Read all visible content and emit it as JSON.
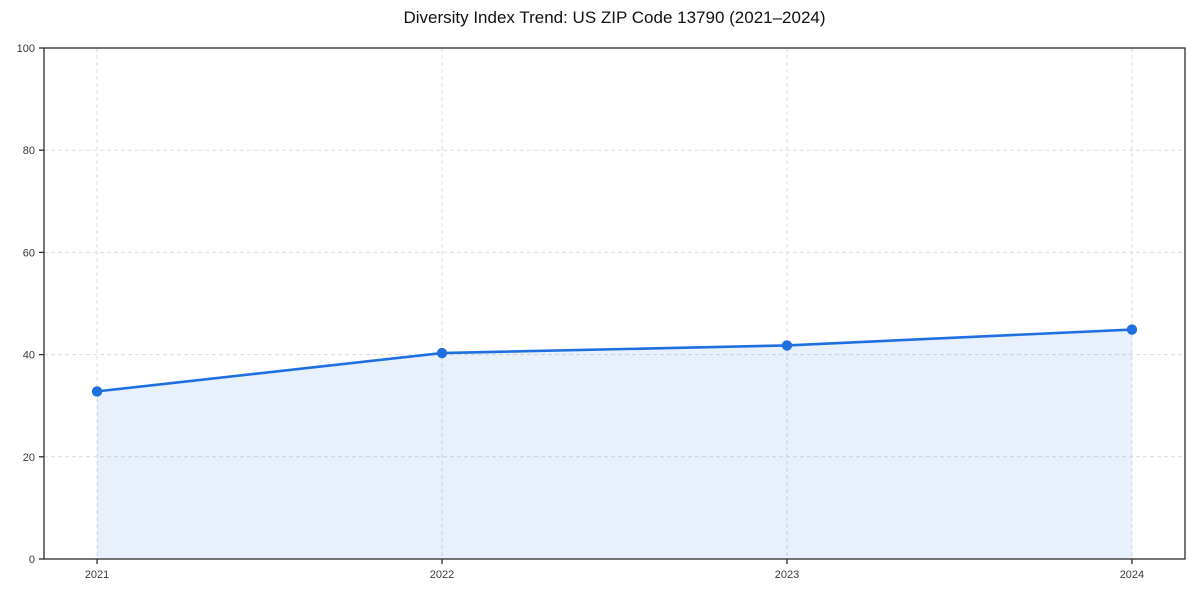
{
  "chart_data": {
    "type": "area",
    "title": "Diversity Index Trend: US ZIP Code 13790 (2021–2024)",
    "x": [
      2021,
      2022,
      2023,
      2024
    ],
    "series": [
      {
        "name": "Diversity Index",
        "values": [
          32.8,
          40.3,
          41.8,
          44.9
        ]
      }
    ],
    "xticks": [
      "2021",
      "2022",
      "2023",
      "2024"
    ],
    "yticks": [
      0,
      20,
      40,
      60,
      80,
      100
    ],
    "ylim": [
      0,
      100
    ],
    "xlabel": "",
    "ylabel": "",
    "grid": true,
    "grid_style": "dashed",
    "legend_position": "none",
    "colors": {
      "line": "#1f6fe0",
      "marker": "#1f6fe0",
      "area_fill": "rgba(31,111,224,0.10)",
      "gridline": "#dcdcdc",
      "spine": "#2b2b2b",
      "tick_label": "#3a3a3a",
      "title": "#111111",
      "background": "#ffffff"
    }
  }
}
